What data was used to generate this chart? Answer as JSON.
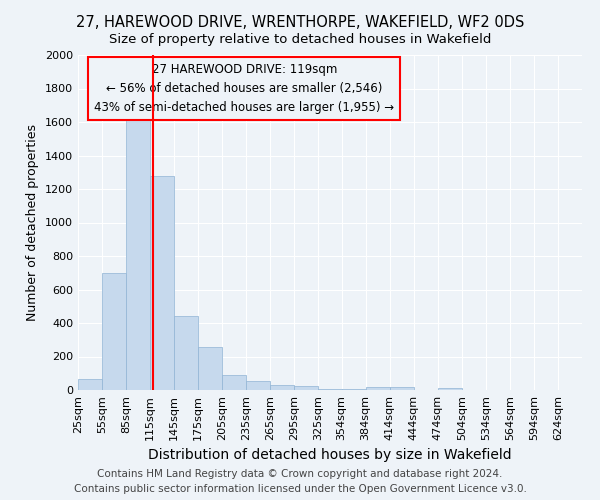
{
  "title": "27, HAREWOOD DRIVE, WRENTHORPE, WAKEFIELD, WF2 0DS",
  "subtitle": "Size of property relative to detached houses in Wakefield",
  "xlabel": "Distribution of detached houses by size in Wakefield",
  "ylabel": "Number of detached properties",
  "bins": [
    25,
    55,
    85,
    115,
    145,
    175,
    205,
    235,
    265,
    295,
    325,
    354,
    384,
    414,
    444,
    474,
    504,
    534,
    564,
    594,
    624
  ],
  "bin_width": 30,
  "values": [
    65,
    700,
    1640,
    1280,
    440,
    255,
    90,
    55,
    30,
    25,
    5,
    5,
    20,
    15,
    0,
    10,
    0,
    0,
    0,
    0,
    0
  ],
  "bar_color": "#c6d9ed",
  "bar_edge_color": "#90b4d4",
  "red_line_x": 119,
  "annotation_lines": [
    "27 HAREWOOD DRIVE: 119sqm",
    "← 56% of detached houses are smaller (2,546)",
    "43% of semi-detached houses are larger (1,955) →"
  ],
  "ylim": [
    0,
    2000
  ],
  "yticks": [
    0,
    200,
    400,
    600,
    800,
    1000,
    1200,
    1400,
    1600,
    1800,
    2000
  ],
  "footer1": "Contains HM Land Registry data © Crown copyright and database right 2024.",
  "footer2": "Contains public sector information licensed under the Open Government Licence v3.0.",
  "bg_color": "#eef3f8",
  "grid_color": "#ffffff",
  "title_fontsize": 10.5,
  "subtitle_fontsize": 9.5,
  "xlabel_fontsize": 10,
  "ylabel_fontsize": 9,
  "tick_fontsize": 8,
  "annotation_fontsize": 8.5,
  "footer_fontsize": 7.5
}
